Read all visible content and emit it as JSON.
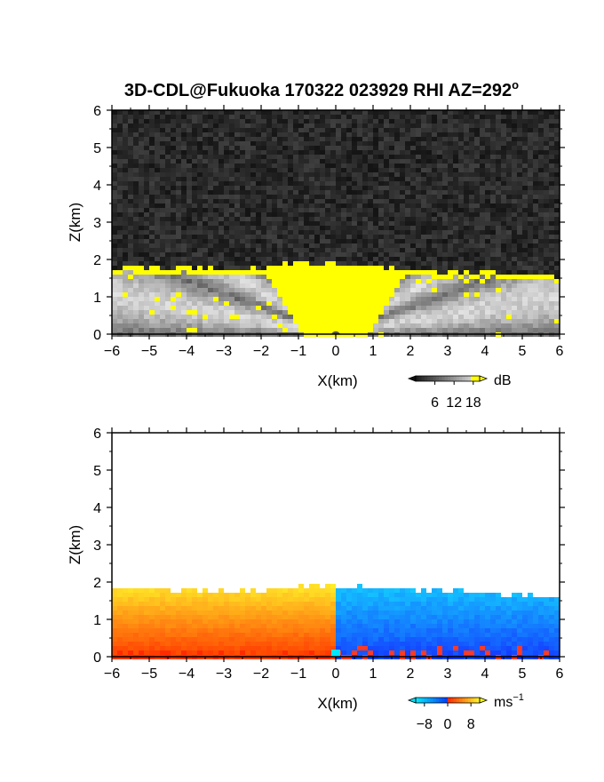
{
  "figure": {
    "title": "3D-CDL@Fukuoka 170322 023929 RHI AZ=292",
    "title_superscript": "o"
  },
  "chart_data": [
    {
      "type": "heatmap",
      "variable": "",
      "xlabel": "X(km)",
      "ylabel": "Z(km)",
      "xlim": [
        -6,
        6
      ],
      "ylim": [
        0,
        6
      ],
      "xticks": [
        "−6",
        "−5",
        "−4",
        "−3",
        "−2",
        "−1",
        "0",
        "1",
        "2",
        "3",
        "4",
        "5",
        "6"
      ],
      "yticks": [
        "0",
        "1",
        "2",
        "3",
        "4",
        "5",
        "6"
      ],
      "colorbar": {
        "unit": "dB",
        "ticks": [
          "6",
          "12",
          "18"
        ],
        "tick_values": [
          6,
          12,
          18
        ],
        "range": [
          0,
          20
        ]
      },
      "echo_top_km": [
        [
          -6,
          1.78
        ],
        [
          -4,
          1.78
        ],
        [
          -2,
          1.75
        ],
        [
          -1,
          1.92
        ],
        [
          0,
          1.88
        ],
        [
          2,
          1.7
        ],
        [
          4,
          1.65
        ],
        [
          6,
          1.55
        ]
      ],
      "high_value_color": "#ffff00",
      "background_color": "#222222"
    },
    {
      "type": "heatmap",
      "variable": "",
      "xlabel": "X(km)",
      "ylabel": "Z(km)",
      "xlim": [
        -6,
        6
      ],
      "ylim": [
        0,
        6
      ],
      "xticks": [
        "−6",
        "−5",
        "−4",
        "−3",
        "−2",
        "−1",
        "0",
        "1",
        "2",
        "3",
        "4",
        "5",
        "6"
      ],
      "yticks": [
        "0",
        "1",
        "2",
        "3",
        "4",
        "5",
        "6"
      ],
      "colorbar": {
        "unit": "ms",
        "unit_superscript": "−1",
        "ticks": [
          "−8",
          "0",
          "8"
        ],
        "tick_values": [
          -8,
          0,
          8
        ],
        "range": [
          -11,
          11
        ]
      },
      "echo_top_km": [
        [
          -6,
          1.82
        ],
        [
          -4,
          1.8
        ],
        [
          -2,
          1.75
        ],
        [
          -1,
          1.9
        ],
        [
          0,
          1.88
        ],
        [
          2,
          1.82
        ],
        [
          4,
          1.7
        ],
        [
          6,
          1.6
        ]
      ],
      "negative_color": "#1e5cff",
      "positive_color": "#ff6a00"
    }
  ]
}
